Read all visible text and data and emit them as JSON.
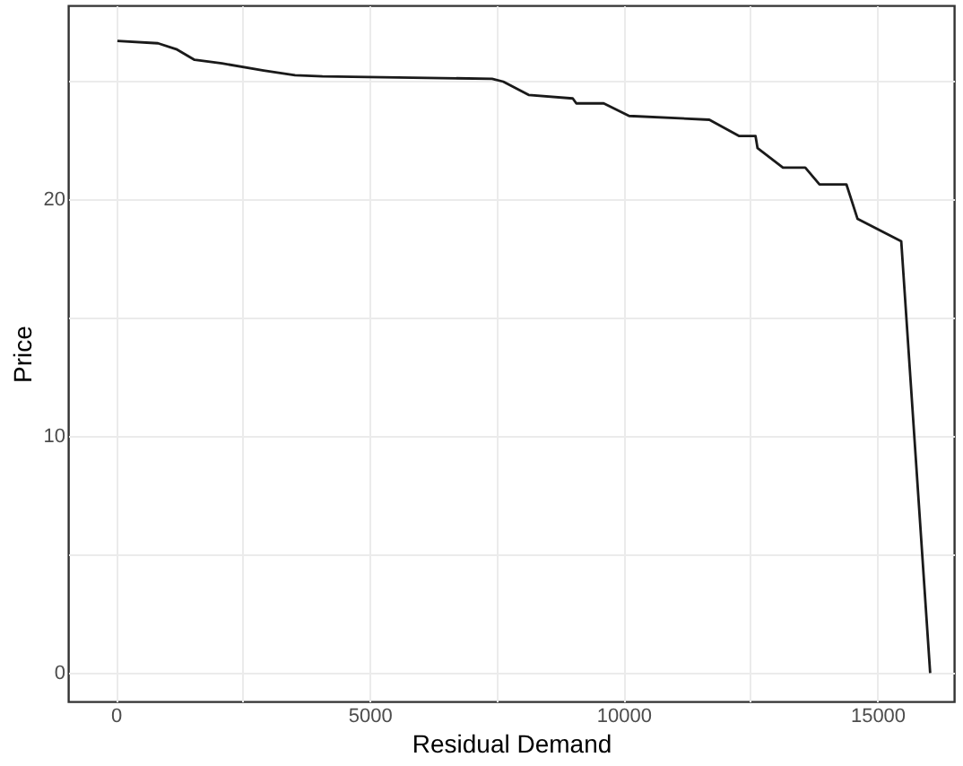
{
  "chart_data": {
    "type": "line",
    "xlabel": "Residual Demand",
    "ylabel": "Price",
    "x": [
      30,
      830,
      1190,
      1550,
      2090,
      2910,
      3530,
      4070,
      7410,
      7630,
      8130,
      9000,
      9070,
      9610,
      10110,
      11690,
      12280,
      12600,
      12640,
      13140,
      13580,
      13860,
      14390,
      14610,
      15470,
      16040
    ],
    "series": [
      {
        "color": "#1a1a1a",
        "values": [
          26.7,
          26.6,
          26.35,
          25.9,
          25.75,
          25.45,
          25.25,
          25.2,
          25.1,
          24.98,
          24.42,
          24.27,
          24.06,
          24.06,
          23.53,
          23.37,
          22.68,
          22.68,
          22.17,
          21.35,
          21.35,
          20.64,
          20.64,
          19.18,
          18.24,
          0
        ]
      }
    ],
    "xlim": [
      -940,
      16510
    ],
    "ylim": [
      -1.2,
      28.2
    ],
    "xticks": [
      0,
      {
        "value": 2500,
        "label": null
      },
      5000,
      {
        "value": 7500,
        "label": null
      },
      10000,
      {
        "value": 12500,
        "label": null
      },
      15000
    ],
    "yticks": [
      0,
      {
        "value": 5,
        "label": null
      },
      10,
      {
        "value": 15,
        "label": null
      },
      20,
      {
        "value": 25,
        "label": null
      }
    ],
    "grid": true,
    "marker": "none",
    "line_style": "solid",
    "legend": false
  }
}
